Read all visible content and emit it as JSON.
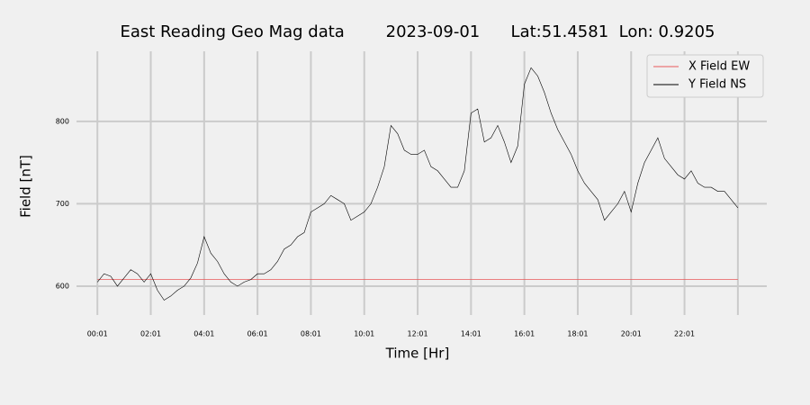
{
  "chart_data": {
    "type": "line",
    "title": "East Reading Geo Mag data        2023-09-01      Lat:51.4581  Lon: 0.9205",
    "xlabel": "Time  [Hr]",
    "ylabel": "Field  [nT]",
    "x": [
      1,
      16,
      31,
      46,
      61,
      76,
      91,
      106,
      121,
      136,
      151,
      166,
      181,
      196,
      211,
      226,
      241,
      256,
      271,
      286,
      301,
      316,
      331,
      346,
      361,
      376,
      391,
      406,
      421,
      436,
      451,
      466,
      481,
      496,
      511,
      526,
      541,
      556,
      571,
      586,
      601,
      616,
      631,
      646,
      661,
      676,
      691,
      706,
      721,
      736,
      751,
      766,
      781,
      796,
      811,
      826,
      841,
      856,
      871,
      886,
      901,
      916,
      931,
      946,
      961,
      976,
      991,
      1006,
      1021,
      1036,
      1051,
      1066,
      1081,
      1096,
      1111,
      1126,
      1141,
      1156,
      1171,
      1186,
      1201,
      1216,
      1231,
      1246,
      1261,
      1276,
      1291,
      1306,
      1321,
      1336,
      1351,
      1366,
      1381,
      1396,
      1411,
      1426,
      1441
    ],
    "series": [
      {
        "name": "X Field EW",
        "color": "#e8595a",
        "values": [
          608,
          608,
          608,
          608,
          608,
          608,
          608,
          608,
          608,
          608,
          608,
          608,
          608,
          608,
          608,
          608,
          608,
          608,
          608,
          608,
          608,
          608,
          608,
          608,
          608,
          608,
          608,
          608,
          608,
          608,
          608,
          608,
          608,
          608,
          608,
          608,
          608,
          608,
          608,
          608,
          608,
          608,
          608,
          608,
          608,
          608,
          608,
          608,
          608,
          608,
          608,
          608,
          608,
          608,
          608,
          608,
          608,
          608,
          608,
          608,
          608,
          608,
          608,
          608,
          608,
          608,
          608,
          608,
          608,
          608,
          608,
          608,
          608,
          608,
          608,
          608,
          608,
          608,
          608,
          608,
          608,
          608,
          608,
          608,
          608,
          608,
          608,
          608,
          608,
          608,
          608,
          608,
          608,
          608,
          608,
          608,
          608
        ]
      },
      {
        "name": "Y Field NS",
        "color": "#000000",
        "values": [
          605,
          615,
          612,
          600,
          610,
          620,
          615,
          605,
          615,
          595,
          583,
          588,
          595,
          600,
          610,
          628,
          660,
          640,
          630,
          615,
          605,
          600,
          605,
          608,
          615,
          615,
          620,
          630,
          645,
          650,
          660,
          665,
          690,
          695,
          700,
          710,
          705,
          700,
          680,
          685,
          690,
          700,
          720,
          745,
          795,
          785,
          765,
          760,
          760,
          765,
          745,
          740,
          730,
          720,
          720,
          740,
          810,
          815,
          775,
          780,
          795,
          775,
          750,
          770,
          845,
          865,
          855,
          835,
          810,
          790,
          775,
          760,
          740,
          725,
          715,
          705,
          680,
          690,
          700,
          715,
          690,
          725,
          750,
          765,
          780,
          755,
          745,
          735,
          730,
          740,
          725,
          720,
          720,
          715,
          715,
          705,
          695
        ]
      }
    ],
    "xlim": [
      -46,
      1506
    ],
    "xticks": [
      {
        "value": 1,
        "label": "00:01"
      },
      {
        "value": 121,
        "label": "02:01"
      },
      {
        "value": 241,
        "label": "04:01"
      },
      {
        "value": 361,
        "label": "06:01"
      },
      {
        "value": 481,
        "label": "08:01"
      },
      {
        "value": 601,
        "label": "10:01"
      },
      {
        "value": 721,
        "label": "12:01"
      },
      {
        "value": 841,
        "label": "14:01"
      },
      {
        "value": 961,
        "label": "16:01"
      },
      {
        "value": 1081,
        "label": "18:01"
      },
      {
        "value": 1201,
        "label": "20:01"
      },
      {
        "value": 1321,
        "label": "22:01"
      },
      {
        "value": 1441,
        "label": null
      }
    ],
    "ylim": [
      565,
      885
    ],
    "yticks": [
      600,
      700,
      800
    ],
    "grid": true,
    "legend": "upper right"
  }
}
